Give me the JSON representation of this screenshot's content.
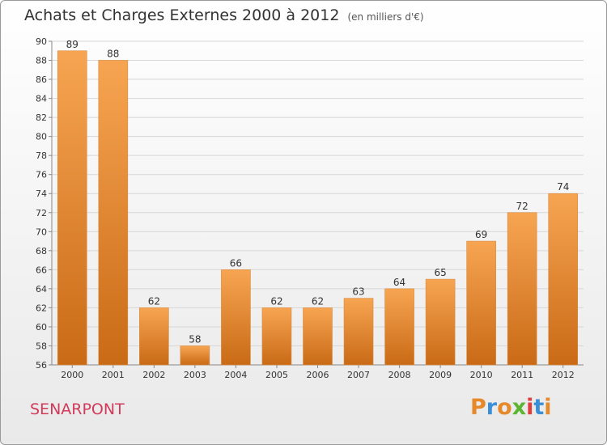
{
  "header": {
    "title": "Achats et Charges Externes 2000 à 2012",
    "unit": "(en milliers d'€)"
  },
  "footer": {
    "commune": "SENARPONT",
    "logo": [
      "P",
      "r",
      "o",
      "x",
      "i",
      "t",
      "i"
    ],
    "logo_colors": [
      "#e6892a",
      "#3a8fd6",
      "#e6892a",
      "#5cb531",
      "#e03c3c",
      "#3a8fd6",
      "#e6892a"
    ]
  },
  "chart_data": {
    "type": "bar",
    "categories": [
      "2000",
      "2001",
      "2002",
      "2003",
      "2004",
      "2005",
      "2006",
      "2007",
      "2008",
      "2009",
      "2010",
      "2011",
      "2012"
    ],
    "values": [
      89,
      88,
      62,
      58,
      66,
      62,
      62,
      63,
      64,
      65,
      69,
      72,
      74
    ],
    "ylim": [
      56,
      90
    ],
    "yticks": [
      56,
      58,
      60,
      62,
      64,
      66,
      68,
      70,
      72,
      74,
      76,
      78,
      80,
      82,
      84,
      86,
      88,
      90
    ],
    "grid": true,
    "bar_color_top": "#f7a552",
    "bar_color_bottom": "#c96a16"
  }
}
